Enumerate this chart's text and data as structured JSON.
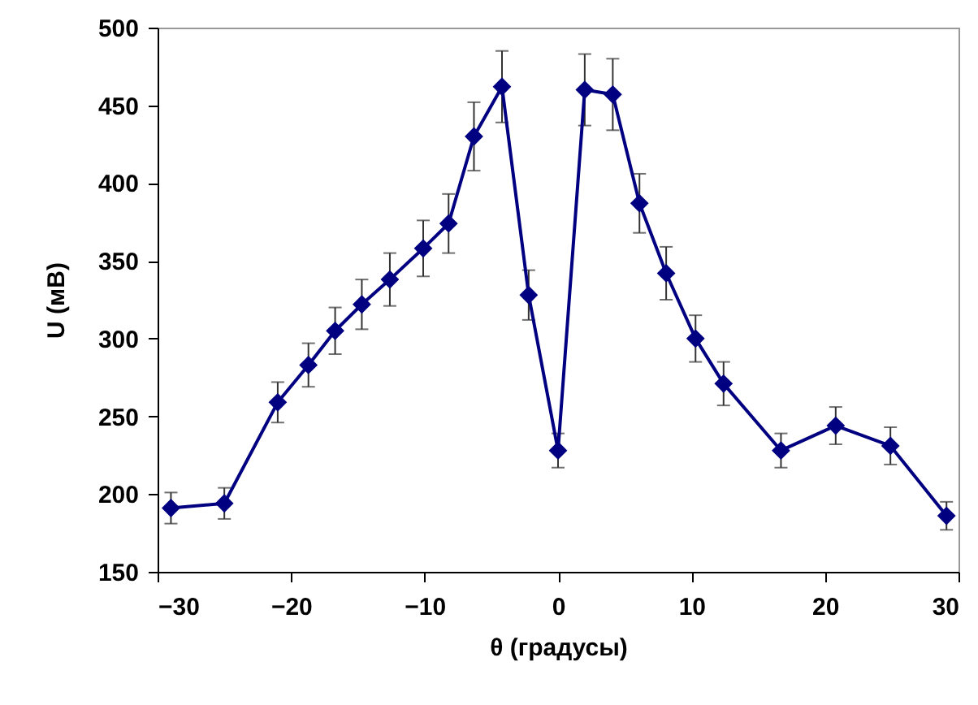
{
  "chart_data": {
    "type": "line",
    "xlabel": "θ (градусы)",
    "ylabel": "U (мВ)",
    "x": [
      -29,
      -25,
      -21,
      -18.7,
      -16.7,
      -14.7,
      -12.6,
      -10.1,
      -8.2,
      -6.3,
      -4.2,
      -2.2,
      0,
      2,
      4.1,
      6.1,
      8.1,
      10.3,
      12.4,
      16.7,
      20.8,
      24.9,
      29.1
    ],
    "series": [
      {
        "color": "#000080",
        "values": [
          191,
          194,
          259,
          283,
          305,
          322,
          338,
          358,
          374,
          430,
          462,
          328,
          228,
          460,
          457,
          387,
          342,
          300,
          271,
          228,
          244,
          231,
          186
        ],
        "errors": [
          10,
          10,
          13,
          14,
          15,
          16,
          17,
          18,
          19,
          22,
          23,
          16,
          11,
          23,
          23,
          19,
          17,
          15,
          14,
          11,
          12,
          12,
          9
        ]
      }
    ],
    "xlim": [
      -30,
      30
    ],
    "xticks": [
      -30,
      -20,
      -10,
      0,
      10,
      20,
      30
    ],
    "ylim": [
      150,
      500
    ],
    "yticks": [
      150,
      200,
      250,
      300,
      350,
      400,
      450,
      500
    ],
    "marker": "diamond",
    "line_style": "solid"
  }
}
